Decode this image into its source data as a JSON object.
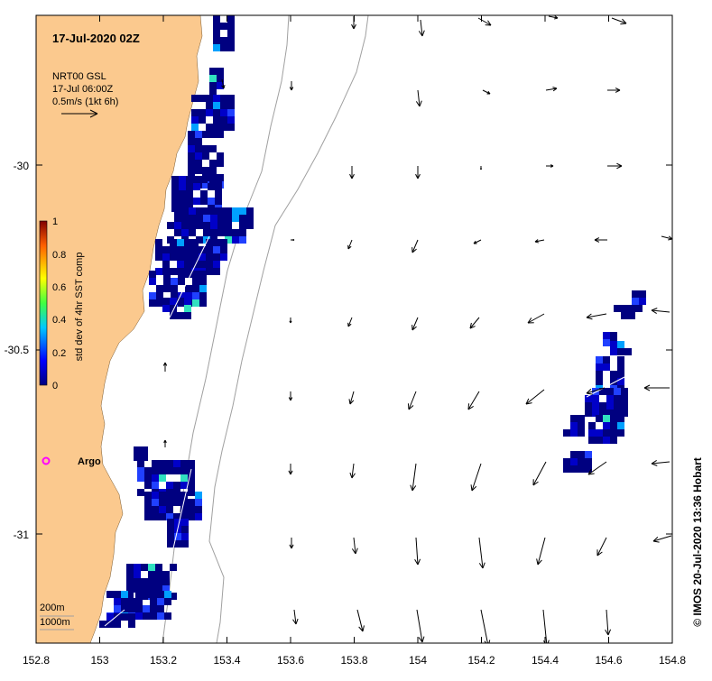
{
  "map": {
    "title": "17-Jul-2020 02Z",
    "legend": {
      "product": "NRT00 GSL",
      "time": "17-Jul 06:00Z",
      "scale": "0.5m/s (1kt 6h)"
    },
    "colorbar": {
      "label": "std dev of 4hr SST comp",
      "ticks": [
        "0",
        "0.2",
        "0.4",
        "0.6",
        "0.8",
        "1"
      ]
    },
    "x_ticks": [
      "152.8",
      "153",
      "153.2",
      "153.4",
      "153.6",
      "153.8",
      "154",
      "154.2",
      "154.4",
      "154.6",
      "154.8"
    ],
    "y_ticks": [
      "-30",
      "-30.5",
      "-31"
    ],
    "argo_label": "Argo",
    "depth_labels": [
      "200m",
      "1000m"
    ],
    "credit": "© IMOS 20-Jul-2020 13:36 Hobart",
    "colors": {
      "land": "#fbc98e",
      "background": "#ffffff",
      "contour": "#a0a0a0",
      "argo": "#ff00ff",
      "field_low": "#000080"
    }
  }
}
